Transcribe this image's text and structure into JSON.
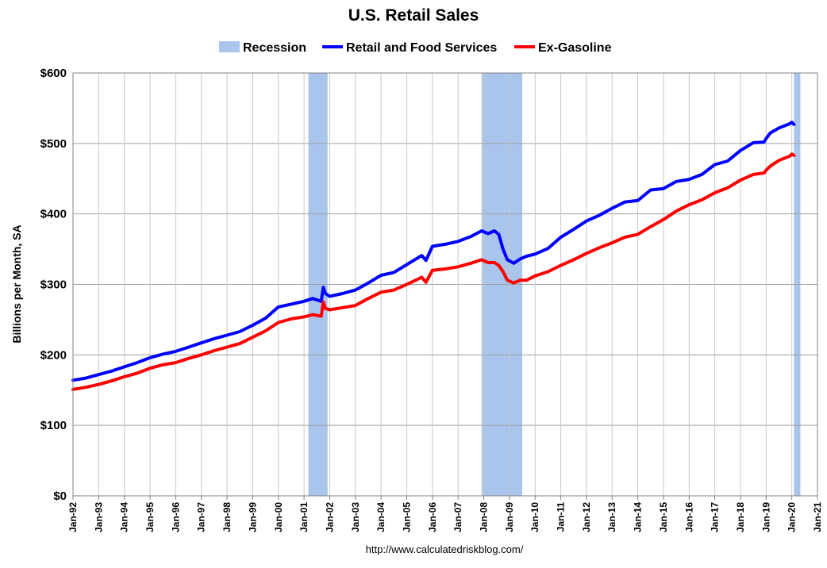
{
  "chart_data": {
    "type": "line",
    "title": "U.S. Retail Sales",
    "xlabel": "",
    "ylabel": "Billions per Month, SA",
    "xlim": [
      "Jan-92",
      "Jan-21"
    ],
    "ylim": [
      0,
      600
    ],
    "y_ticks": [
      "$0",
      "$100",
      "$200",
      "$300",
      "$400",
      "$500",
      "$600"
    ],
    "x_ticks": [
      "Jan-92",
      "Jan-93",
      "Jan-94",
      "Jan-95",
      "Jan-96",
      "Jan-97",
      "Jan-98",
      "Jan-99",
      "Jan-00",
      "Jan-01",
      "Jan-02",
      "Jan-03",
      "Jan-04",
      "Jan-05",
      "Jan-06",
      "Jan-07",
      "Jan-08",
      "Jan-09",
      "Jan-10",
      "Jan-11",
      "Jan-12",
      "Jan-13",
      "Jan-14",
      "Jan-15",
      "Jan-16",
      "Jan-17",
      "Jan-18",
      "Jan-19",
      "Jan-20",
      "Jan-21"
    ],
    "grid": true,
    "legend": {
      "position": "top",
      "entries": [
        {
          "label": "Recession",
          "color": "#A9C5EB",
          "kind": "band"
        },
        {
          "label": "Retail and Food Services",
          "color": "#0000FF",
          "kind": "line"
        },
        {
          "label": "Ex-Gasoline",
          "color": "#FF0000",
          "kind": "line"
        }
      ]
    },
    "recessions": [
      {
        "start": "2001-03",
        "end": "2001-11"
      },
      {
        "start": "2007-12",
        "end": "2009-06"
      },
      {
        "start": "2020-02",
        "end": "2020-04"
      }
    ],
    "series": [
      {
        "name": "Retail and Food Services",
        "color": "#0000FF",
        "points": [
          [
            "1992-01",
            164
          ],
          [
            "1992-07",
            167
          ],
          [
            "1993-01",
            172
          ],
          [
            "1993-07",
            177
          ],
          [
            "1994-01",
            183
          ],
          [
            "1994-07",
            189
          ],
          [
            "1995-01",
            196
          ],
          [
            "1995-07",
            201
          ],
          [
            "1996-01",
            205
          ],
          [
            "1996-07",
            211
          ],
          [
            "1997-01",
            217
          ],
          [
            "1997-07",
            223
          ],
          [
            "1998-01",
            228
          ],
          [
            "1998-07",
            233
          ],
          [
            "1999-01",
            242
          ],
          [
            "1999-07",
            252
          ],
          [
            "2000-01",
            268
          ],
          [
            "2000-07",
            272
          ],
          [
            "2001-01",
            276
          ],
          [
            "2001-05",
            280
          ],
          [
            "2001-09",
            276
          ],
          [
            "2001-10",
            296
          ],
          [
            "2001-11",
            287
          ],
          [
            "2002-01",
            283
          ],
          [
            "2002-07",
            287
          ],
          [
            "2003-01",
            292
          ],
          [
            "2003-07",
            302
          ],
          [
            "2004-01",
            313
          ],
          [
            "2004-07",
            317
          ],
          [
            "2005-01",
            328
          ],
          [
            "2005-08",
            341
          ],
          [
            "2005-10",
            334
          ],
          [
            "2006-01",
            354
          ],
          [
            "2006-07",
            357
          ],
          [
            "2007-01",
            361
          ],
          [
            "2007-07",
            368
          ],
          [
            "2007-12",
            376
          ],
          [
            "2008-03",
            372
          ],
          [
            "2008-06",
            376
          ],
          [
            "2008-08",
            371
          ],
          [
            "2008-10",
            350
          ],
          [
            "2008-12",
            335
          ],
          [
            "2009-03",
            330
          ],
          [
            "2009-06",
            336
          ],
          [
            "2009-09",
            340
          ],
          [
            "2010-01",
            343
          ],
          [
            "2010-07",
            351
          ],
          [
            "2011-01",
            367
          ],
          [
            "2011-07",
            378
          ],
          [
            "2012-01",
            390
          ],
          [
            "2012-07",
            398
          ],
          [
            "2013-01",
            408
          ],
          [
            "2013-07",
            417
          ],
          [
            "2014-01",
            419
          ],
          [
            "2014-07",
            434
          ],
          [
            "2015-01",
            436
          ],
          [
            "2015-07",
            446
          ],
          [
            "2016-01",
            449
          ],
          [
            "2016-07",
            456
          ],
          [
            "2017-01",
            470
          ],
          [
            "2017-07",
            475
          ],
          [
            "2018-01",
            490
          ],
          [
            "2018-07",
            501
          ],
          [
            "2018-12",
            502
          ],
          [
            "2019-01",
            507
          ],
          [
            "2019-03",
            515
          ],
          [
            "2019-07",
            522
          ],
          [
            "2019-12",
            528
          ],
          [
            "2020-01",
            530
          ],
          [
            "2020-02",
            527
          ]
        ]
      },
      {
        "name": "Ex-Gasoline",
        "color": "#FF0000",
        "points": [
          [
            "1992-01",
            151
          ],
          [
            "1992-07",
            154
          ],
          [
            "1993-01",
            158
          ],
          [
            "1993-07",
            163
          ],
          [
            "1994-01",
            169
          ],
          [
            "1994-07",
            174
          ],
          [
            "1995-01",
            181
          ],
          [
            "1995-07",
            186
          ],
          [
            "1996-01",
            189
          ],
          [
            "1996-07",
            195
          ],
          [
            "1997-01",
            200
          ],
          [
            "1997-07",
            206
          ],
          [
            "1998-01",
            211
          ],
          [
            "1998-07",
            216
          ],
          [
            "1999-01",
            225
          ],
          [
            "1999-07",
            234
          ],
          [
            "2000-01",
            246
          ],
          [
            "2000-07",
            251
          ],
          [
            "2001-01",
            254
          ],
          [
            "2001-05",
            257
          ],
          [
            "2001-09",
            255
          ],
          [
            "2001-10",
            275
          ],
          [
            "2001-11",
            266
          ],
          [
            "2002-01",
            264
          ],
          [
            "2002-07",
            267
          ],
          [
            "2003-01",
            270
          ],
          [
            "2003-07",
            280
          ],
          [
            "2004-01",
            289
          ],
          [
            "2004-07",
            292
          ],
          [
            "2005-01",
            300
          ],
          [
            "2005-08",
            310
          ],
          [
            "2005-10",
            303
          ],
          [
            "2006-01",
            320
          ],
          [
            "2006-07",
            322
          ],
          [
            "2007-01",
            325
          ],
          [
            "2007-07",
            330
          ],
          [
            "2007-12",
            335
          ],
          [
            "2008-03",
            331
          ],
          [
            "2008-06",
            331
          ],
          [
            "2008-08",
            327
          ],
          [
            "2008-10",
            318
          ],
          [
            "2008-12",
            306
          ],
          [
            "2009-03",
            302
          ],
          [
            "2009-06",
            306
          ],
          [
            "2009-09",
            306
          ],
          [
            "2010-01",
            312
          ],
          [
            "2010-07",
            318
          ],
          [
            "2011-01",
            327
          ],
          [
            "2011-07",
            335
          ],
          [
            "2012-01",
            344
          ],
          [
            "2012-07",
            352
          ],
          [
            "2013-01",
            359
          ],
          [
            "2013-07",
            367
          ],
          [
            "2014-01",
            371
          ],
          [
            "2014-07",
            382
          ],
          [
            "2015-01",
            392
          ],
          [
            "2015-07",
            404
          ],
          [
            "2016-01",
            413
          ],
          [
            "2016-07",
            420
          ],
          [
            "2017-01",
            430
          ],
          [
            "2017-07",
            437
          ],
          [
            "2018-01",
            448
          ],
          [
            "2018-07",
            456
          ],
          [
            "2018-12",
            458
          ],
          [
            "2019-01",
            462
          ],
          [
            "2019-03",
            468
          ],
          [
            "2019-07",
            476
          ],
          [
            "2019-12",
            482
          ],
          [
            "2020-01",
            485
          ],
          [
            "2020-02",
            483
          ]
        ]
      }
    ],
    "source": "http://www.calculatedriskblog.com/"
  }
}
